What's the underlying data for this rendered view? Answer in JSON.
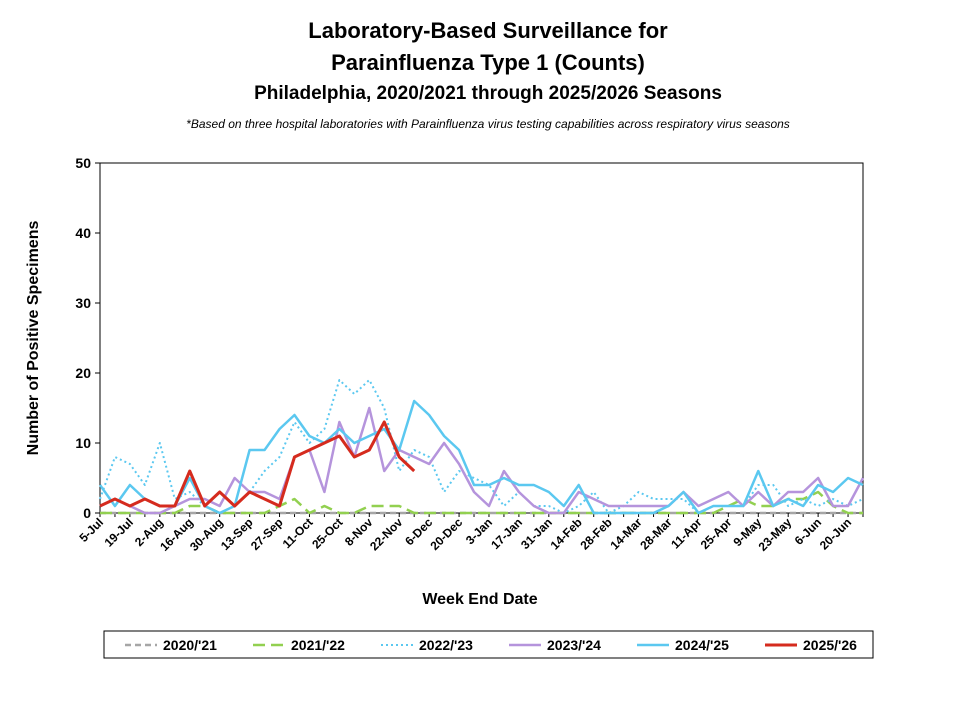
{
  "chart_data": {
    "type": "line",
    "title": [
      "Laboratory-Based Surveillance for",
      "Parainfluenza Type 1 (Counts)"
    ],
    "subtitle": "Philadelphia, 2020/2021 through 2025/2026 Seasons",
    "note": "*Based on three hospital laboratories with Parainfluenza virus testing capabilities across respiratory virus seasons",
    "x_label": "Week End Date",
    "y_label": "Number of Positive Specimens",
    "categories": [
      "5-Jul",
      null,
      "19-Jul",
      null,
      "2-Aug",
      null,
      "16-Aug",
      null,
      "30-Aug",
      null,
      "13-Sep",
      null,
      "27-Sep",
      null,
      "11-Oct",
      null,
      "25-Oct",
      null,
      "8-Nov",
      null,
      "22-Nov",
      null,
      "6-Dec",
      null,
      "20-Dec",
      null,
      "3-Jan",
      null,
      "17-Jan",
      null,
      "31-Jan",
      null,
      "14-Feb",
      null,
      "28-Feb",
      null,
      "14-Mar",
      null,
      "28-Mar",
      null,
      "11-Apr",
      null,
      "25-Apr",
      null,
      "9-May",
      null,
      "23-May",
      null,
      "6-Jun",
      null,
      "20-Jun",
      null
    ],
    "ylim": [
      0,
      50
    ],
    "yticks": [
      0,
      10,
      20,
      30,
      40,
      50
    ],
    "grid": false,
    "legend": "bottom",
    "series": [
      {
        "name": "2020/'21",
        "color": "#a6a6a6",
        "dash": "dashed",
        "values": [
          0,
          0,
          0,
          0,
          0,
          0,
          0,
          0,
          0,
          0,
          0,
          0,
          0,
          0,
          0,
          0,
          0,
          0,
          0,
          0,
          0,
          0,
          0,
          0,
          0,
          0,
          0,
          0,
          0,
          0,
          0,
          0,
          0,
          0,
          0,
          0,
          0,
          0,
          0,
          0,
          0,
          0,
          0,
          0,
          0,
          0,
          0,
          0,
          0,
          0,
          0,
          0
        ]
      },
      {
        "name": "2021/'22",
        "color": "#92d050",
        "dash": "long-dashed",
        "values": [
          0,
          0,
          0,
          0,
          0,
          0,
          1,
          1,
          0,
          0,
          0,
          0,
          1,
          2,
          0,
          1,
          0,
          0,
          1,
          1,
          1,
          0,
          0,
          0,
          0,
          0,
          0,
          0,
          0,
          0,
          0,
          0,
          0,
          0,
          0,
          0,
          0,
          0,
          0,
          0,
          0,
          0,
          1,
          2,
          1,
          1,
          2,
          2,
          3,
          1,
          0,
          0
        ]
      },
      {
        "name": "2022/'23",
        "color": "#5bc8f0",
        "dash": "dotted",
        "values": [
          2,
          8,
          7,
          4,
          10,
          2,
          3,
          1,
          0,
          1,
          3,
          6,
          8,
          13,
          10,
          12,
          19,
          17,
          19,
          15,
          6,
          9,
          8,
          3,
          6,
          5,
          4,
          1,
          3,
          1,
          1,
          0,
          1,
          3,
          0,
          1,
          3,
          2,
          2,
          2,
          0,
          1,
          1,
          1,
          4,
          4,
          1,
          2,
          1,
          2,
          1,
          2
        ]
      },
      {
        "name": "2023/'24",
        "color": "#b594dc",
        "dash": "solid",
        "values": [
          1,
          2,
          1,
          0,
          0,
          1,
          2,
          2,
          1,
          5,
          3,
          3,
          2,
          8,
          9,
          3,
          13,
          8,
          15,
          6,
          9,
          8,
          7,
          10,
          7,
          3,
          1,
          6,
          3,
          1,
          0,
          0,
          3,
          2,
          1,
          1,
          1,
          1,
          1,
          3,
          1,
          2,
          3,
          1,
          3,
          1,
          3,
          3,
          5,
          1,
          1,
          5
        ]
      },
      {
        "name": "2024/'25",
        "color": "#5bc8f0",
        "dash": "solid",
        "values": [
          4,
          1,
          4,
          2,
          1,
          1,
          5,
          1,
          0,
          1,
          9,
          9,
          12,
          14,
          11,
          10,
          12,
          10,
          11,
          12,
          9,
          16,
          14,
          11,
          9,
          4,
          4,
          5,
          4,
          4,
          3,
          1,
          4,
          0,
          0,
          0,
          0,
          0,
          1,
          3,
          0,
          1,
          1,
          1,
          6,
          1,
          2,
          1,
          4,
          3,
          5,
          4
        ]
      },
      {
        "name": "2025/'26",
        "color": "#d52b1e",
        "dash": "solid",
        "values": [
          1,
          2,
          1,
          2,
          1,
          1,
          6,
          1,
          3,
          1,
          3,
          2,
          1,
          8,
          9,
          10,
          11,
          8,
          9,
          13,
          8,
          6,
          null,
          null,
          null,
          null,
          null,
          null,
          null,
          null,
          null,
          null,
          null,
          null,
          null,
          null,
          null,
          null,
          null,
          null,
          null,
          null,
          null,
          null,
          null,
          null,
          null,
          null,
          null,
          null,
          null,
          null
        ]
      }
    ]
  }
}
